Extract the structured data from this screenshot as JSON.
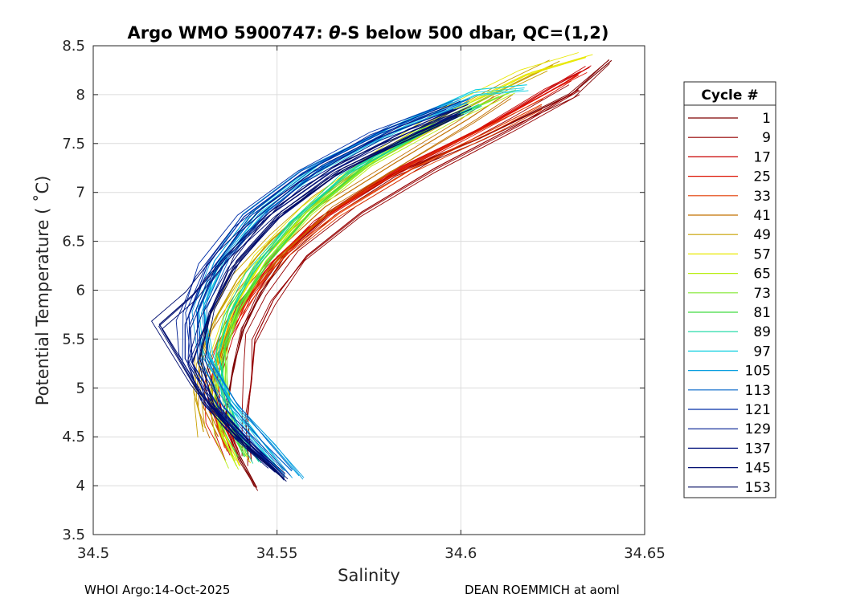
{
  "chart_data": {
    "type": "line",
    "title": "Argo WMO 5900747: θ-S below 500 dbar,  QC=(1,2)",
    "title_prefix": "Argo WMO 5900747: ",
    "title_theta": "θ",
    "title_suffix": "-S below 500 dbar,  QC=(1,2)",
    "xlabel": "Salinity",
    "ylabel": "Potential Temperature ( ˚C)",
    "xlim": [
      34.5,
      34.65
    ],
    "ylim": [
      3.5,
      8.5
    ],
    "x_ticks": [
      34.5,
      34.55,
      34.6,
      34.65
    ],
    "x_tick_labels": [
      "34.5",
      "34.55",
      "34.6",
      "34.65"
    ],
    "y_ticks": [
      3.5,
      4,
      4.5,
      5,
      5.5,
      6,
      6.5,
      7,
      7.5,
      8,
      8.5
    ],
    "y_tick_labels": [
      "3.5",
      "4",
      "4.5",
      "5",
      "5.5",
      "6",
      "6.5",
      "7",
      "7.5",
      "8",
      "8.5"
    ],
    "grid": true,
    "legend": {
      "title": "Cycle #",
      "position": "right",
      "entries": [
        "1",
        "9",
        "17",
        "25",
        "33",
        "41",
        "49",
        "57",
        "65",
        "73",
        "81",
        "89",
        "97",
        "105",
        "113",
        "121",
        "129",
        "137",
        "145",
        "153"
      ],
      "colors": [
        "#7f0000",
        "#960000",
        "#c80000",
        "#dd1100",
        "#e23a00",
        "#c27000",
        "#c9a000",
        "#e8e800",
        "#b8ee10",
        "#80e830",
        "#40dc40",
        "#10d8a0",
        "#10d0e0",
        "#0aa0e0",
        "#0064c8",
        "#002ea8",
        "#001e90",
        "#00107a",
        "#000e70",
        "#000a60"
      ]
    },
    "series_profiles": [
      {
        "cycle": 1,
        "color": "#7f0000",
        "points": [
          [
            34.5445,
            3.98
          ],
          [
            34.54,
            4.3
          ],
          [
            34.536,
            4.7
          ],
          [
            34.538,
            5.2
          ],
          [
            34.541,
            5.6
          ],
          [
            34.546,
            6.0
          ],
          [
            34.553,
            6.4
          ],
          [
            34.565,
            6.8
          ],
          [
            34.583,
            7.2
          ],
          [
            34.605,
            7.55
          ],
          [
            34.63,
            8.0
          ],
          [
            34.641,
            8.35
          ]
        ]
      },
      {
        "cycle": 9,
        "color": "#960000",
        "points": [
          [
            34.543,
            4.25
          ],
          [
            34.542,
            4.7
          ],
          [
            34.543,
            5.1
          ],
          [
            34.544,
            5.5
          ],
          [
            34.549,
            5.9
          ],
          [
            34.558,
            6.35
          ],
          [
            34.573,
            6.8
          ],
          [
            34.593,
            7.25
          ],
          [
            34.616,
            7.7
          ],
          [
            34.632,
            8.05
          ]
        ]
      },
      {
        "cycle": 17,
        "color": "#c80000",
        "points": [
          [
            34.538,
            4.3
          ],
          [
            34.535,
            4.6
          ],
          [
            34.533,
            5.0
          ],
          [
            34.537,
            5.5
          ],
          [
            34.542,
            5.9
          ],
          [
            34.55,
            6.3
          ],
          [
            34.563,
            6.75
          ],
          [
            34.582,
            7.2
          ],
          [
            34.606,
            7.65
          ],
          [
            34.626,
            8.1
          ],
          [
            34.635,
            8.28
          ]
        ]
      },
      {
        "cycle": 25,
        "color": "#dd1100",
        "points": [
          [
            34.537,
            4.35
          ],
          [
            34.533,
            4.7
          ],
          [
            34.532,
            5.1
          ],
          [
            34.536,
            5.5
          ],
          [
            34.541,
            5.9
          ],
          [
            34.549,
            6.3
          ],
          [
            34.561,
            6.7
          ],
          [
            34.579,
            7.15
          ],
          [
            34.603,
            7.6
          ],
          [
            34.625,
            8.05
          ],
          [
            34.632,
            8.2
          ]
        ]
      },
      {
        "cycle": 33,
        "color": "#e23a00",
        "points": [
          [
            34.536,
            4.4
          ],
          [
            34.532,
            4.8
          ],
          [
            34.533,
            5.2
          ],
          [
            34.537,
            5.6
          ],
          [
            34.544,
            6.0
          ],
          [
            34.553,
            6.4
          ],
          [
            34.567,
            6.8
          ],
          [
            34.587,
            7.25
          ],
          [
            34.609,
            7.65
          ],
          [
            34.622,
            7.9
          ]
        ]
      },
      {
        "cycle": 41,
        "color": "#c27000",
        "points": [
          [
            34.534,
            4.5
          ],
          [
            34.53,
            4.8
          ],
          [
            34.531,
            5.2
          ],
          [
            34.535,
            5.6
          ],
          [
            34.541,
            6.0
          ],
          [
            34.55,
            6.4
          ],
          [
            34.563,
            6.85
          ],
          [
            34.582,
            7.3
          ],
          [
            34.602,
            7.75
          ],
          [
            34.612,
            8.0
          ]
        ]
      },
      {
        "cycle": 49,
        "color": "#c9a000",
        "points": [
          [
            34.53,
            4.55
          ],
          [
            34.528,
            4.9
          ],
          [
            34.529,
            5.3
          ],
          [
            34.533,
            5.7
          ],
          [
            34.539,
            6.1
          ],
          [
            34.548,
            6.5
          ],
          [
            34.56,
            6.9
          ],
          [
            34.577,
            7.35
          ],
          [
            34.596,
            7.75
          ],
          [
            34.614,
            8.1
          ],
          [
            34.625,
            8.3
          ]
        ]
      },
      {
        "cycle": 57,
        "color": "#e8e800",
        "points": [
          [
            34.54,
            4.2
          ],
          [
            34.536,
            4.5
          ],
          [
            34.533,
            4.9
          ],
          [
            34.534,
            5.3
          ],
          [
            34.538,
            5.8
          ],
          [
            34.546,
            6.3
          ],
          [
            34.558,
            6.8
          ],
          [
            34.575,
            7.3
          ],
          [
            34.596,
            7.8
          ],
          [
            34.618,
            8.2
          ],
          [
            34.634,
            8.38
          ]
        ]
      },
      {
        "cycle": 65,
        "color": "#b8ee10",
        "points": [
          [
            34.539,
            4.2
          ],
          [
            34.535,
            4.5
          ],
          [
            34.533,
            4.9
          ],
          [
            34.535,
            5.3
          ],
          [
            34.539,
            5.8
          ],
          [
            34.547,
            6.3
          ],
          [
            34.559,
            6.8
          ],
          [
            34.576,
            7.3
          ],
          [
            34.597,
            7.75
          ],
          [
            34.615,
            8.05
          ]
        ]
      },
      {
        "cycle": 73,
        "color": "#80e830",
        "points": [
          [
            34.542,
            4.3
          ],
          [
            34.538,
            4.6
          ],
          [
            34.536,
            5.0
          ],
          [
            34.536,
            5.4
          ],
          [
            34.54,
            5.8
          ],
          [
            34.547,
            6.25
          ],
          [
            34.558,
            6.75
          ],
          [
            34.574,
            7.25
          ],
          [
            34.594,
            7.7
          ],
          [
            34.612,
            8.0
          ]
        ]
      },
      {
        "cycle": 81,
        "color": "#40dc40",
        "points": [
          [
            34.541,
            4.3
          ],
          [
            34.537,
            4.65
          ],
          [
            34.535,
            5.05
          ],
          [
            34.536,
            5.45
          ],
          [
            34.54,
            5.85
          ],
          [
            34.548,
            6.3
          ],
          [
            34.559,
            6.8
          ],
          [
            34.575,
            7.3
          ],
          [
            34.594,
            7.7
          ]
        ]
      },
      {
        "cycle": 89,
        "color": "#10d8a0",
        "points": [
          [
            34.545,
            4.25
          ],
          [
            34.54,
            4.55
          ],
          [
            34.536,
            4.95
          ],
          [
            34.534,
            5.35
          ],
          [
            34.537,
            5.75
          ],
          [
            34.543,
            6.2
          ],
          [
            34.554,
            6.7
          ],
          [
            34.569,
            7.2
          ],
          [
            34.59,
            7.65
          ],
          [
            34.605,
            7.9
          ]
        ]
      },
      {
        "cycle": 97,
        "color": "#10d0e0",
        "points": [
          [
            34.552,
            4.15
          ],
          [
            34.545,
            4.5
          ],
          [
            34.537,
            4.9
          ],
          [
            34.531,
            5.4
          ],
          [
            34.53,
            5.9
          ],
          [
            34.536,
            6.4
          ],
          [
            34.546,
            6.85
          ],
          [
            34.562,
            7.3
          ],
          [
            34.583,
            7.7
          ],
          [
            34.604,
            8.05
          ],
          [
            34.618,
            8.1
          ]
        ]
      },
      {
        "cycle": 105,
        "color": "#0aa0e0",
        "points": [
          [
            34.556,
            4.1
          ],
          [
            34.548,
            4.45
          ],
          [
            34.538,
            4.85
          ],
          [
            34.53,
            5.3
          ],
          [
            34.528,
            5.8
          ],
          [
            34.533,
            6.3
          ],
          [
            34.543,
            6.8
          ],
          [
            34.559,
            7.25
          ],
          [
            34.58,
            7.65
          ],
          [
            34.6,
            7.95
          ]
        ]
      },
      {
        "cycle": 113,
        "color": "#0064c8",
        "points": [
          [
            34.554,
            4.15
          ],
          [
            34.546,
            4.45
          ],
          [
            34.537,
            4.85
          ],
          [
            34.531,
            5.3
          ],
          [
            34.53,
            5.8
          ],
          [
            34.536,
            6.3
          ],
          [
            34.547,
            6.8
          ],
          [
            34.564,
            7.3
          ],
          [
            34.584,
            7.7
          ],
          [
            34.602,
            7.95
          ]
        ]
      },
      {
        "cycle": 121,
        "color": "#002ea8",
        "points": [
          [
            34.552,
            4.1
          ],
          [
            34.544,
            4.4
          ],
          [
            34.534,
            4.8
          ],
          [
            34.527,
            5.25
          ],
          [
            34.526,
            5.75
          ],
          [
            34.531,
            6.25
          ],
          [
            34.541,
            6.75
          ],
          [
            34.557,
            7.2
          ],
          [
            34.578,
            7.6
          ],
          [
            34.596,
            7.85
          ]
        ]
      },
      {
        "cycle": 129,
        "color": "#001e90",
        "points": [
          [
            34.551,
            4.1
          ],
          [
            34.543,
            4.4
          ],
          [
            34.533,
            4.8
          ],
          [
            34.525,
            5.3
          ],
          [
            34.525,
            5.65
          ],
          [
            34.53,
            6.1
          ],
          [
            34.54,
            6.6
          ],
          [
            34.556,
            7.1
          ],
          [
            34.577,
            7.55
          ],
          [
            34.598,
            7.85
          ]
        ]
      },
      {
        "cycle": 137,
        "color": "#00107a",
        "points": [
          [
            34.55,
            4.15
          ],
          [
            34.54,
            4.45
          ],
          [
            34.531,
            4.85
          ],
          [
            34.527,
            5.25
          ],
          [
            34.531,
            5.7
          ],
          [
            34.538,
            6.2
          ],
          [
            34.549,
            6.7
          ],
          [
            34.565,
            7.15
          ],
          [
            34.585,
            7.55
          ],
          [
            34.599,
            7.8
          ]
        ]
      },
      {
        "cycle": 145,
        "color": "#000e70",
        "points": [
          [
            34.548,
            4.2
          ],
          [
            34.538,
            4.55
          ],
          [
            34.528,
            5.0
          ],
          [
            34.518,
            5.65
          ],
          [
            34.527,
            5.95
          ],
          [
            34.536,
            6.35
          ],
          [
            34.548,
            6.8
          ],
          [
            34.565,
            7.25
          ],
          [
            34.586,
            7.65
          ],
          [
            34.602,
            7.9
          ]
        ]
      },
      {
        "cycle": 153,
        "color": "#000a60",
        "points": [
          [
            34.552,
            4.07
          ],
          [
            34.542,
            4.4
          ],
          [
            34.533,
            4.8
          ],
          [
            34.529,
            5.3
          ],
          [
            34.532,
            5.8
          ],
          [
            34.539,
            6.3
          ],
          [
            34.551,
            6.8
          ],
          [
            34.568,
            7.25
          ],
          [
            34.588,
            7.6
          ],
          [
            34.6,
            7.8
          ]
        ]
      }
    ]
  },
  "footer": {
    "left": "WHOI Argo:14-Oct-2025",
    "right": "DEAN ROEMMICH at aoml"
  }
}
